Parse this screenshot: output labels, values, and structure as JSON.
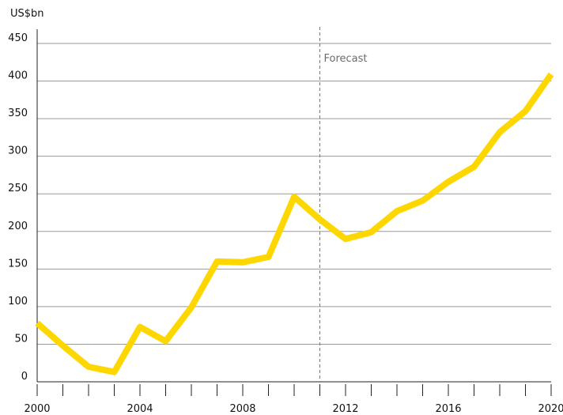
{
  "chart_data": {
    "type": "line",
    "title": "",
    "xlabel": "",
    "ylabel": "US$bn",
    "x": [
      2000,
      2001,
      2002,
      2003,
      2004,
      2005,
      2006,
      2007,
      2008,
      2009,
      2010,
      2011,
      2012,
      2013,
      2014,
      2015,
      2016,
      2017,
      2018,
      2019,
      2020
    ],
    "series": [
      {
        "name": "",
        "color": "#FFD700",
        "values": [
          78,
          48,
          20,
          13,
          73,
          54,
          99,
          160,
          159,
          166,
          246,
          216,
          190,
          199,
          227,
          241,
          266,
          286,
          332,
          360,
          409
        ]
      }
    ],
    "xlim": [
      2000,
      2020
    ],
    "ylim": [
      0,
      450
    ],
    "x_tick_labels": [
      "2000",
      "2004",
      "2008",
      "2012",
      "2016",
      "2020"
    ],
    "y_tick_labels": [
      "0",
      "50",
      "100",
      "150",
      "200",
      "250",
      "300",
      "350",
      "400",
      "450"
    ],
    "grid": "horizontal",
    "forecast_start": 2011,
    "forecast_label": "Forecast",
    "colors": {
      "line": "#FFD700",
      "grid": "#9a9a9a",
      "axis": "#222222",
      "forecast_line": "#777777"
    }
  }
}
